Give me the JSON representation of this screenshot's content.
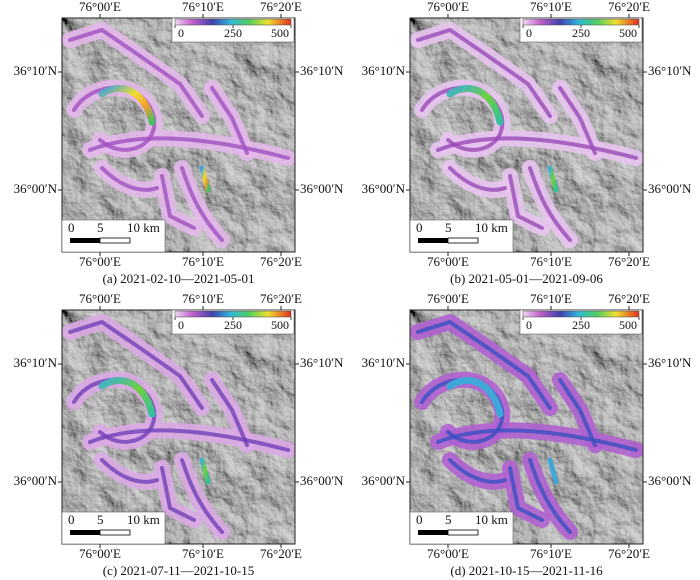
{
  "panels": [
    {
      "caption": "(a) 2021-02-10—2021-05-01",
      "lon_labels": [
        "76°00′E",
        "76°10′E",
        "76°20′E"
      ],
      "lat_labels": [
        "36°10′N",
        "36°00′N"
      ],
      "colorbar_ticks": [
        0,
        250,
        500
      ],
      "scale_labels": [
        "0",
        "5",
        "10 km"
      ]
    },
    {
      "caption": "(b) 2021-05-01—2021-09-06",
      "lon_labels": [
        "76°00′E",
        "76°10′E",
        "76°20′E"
      ],
      "lat_labels": [
        "36°10′N",
        "36°00′N"
      ],
      "colorbar_ticks": [
        0,
        250,
        500
      ],
      "scale_labels": [
        "0",
        "5",
        "10 km"
      ]
    },
    {
      "caption": "(c) 2021-07-11—2021-10-15",
      "lon_labels": [
        "76°00′E",
        "76°10′E",
        "76°20′E"
      ],
      "lat_labels": [
        "36°10′N",
        "36°00′N"
      ],
      "colorbar_ticks": [
        0,
        250,
        500
      ],
      "scale_labels": [
        "0",
        "5",
        "10 km"
      ]
    },
    {
      "caption": "(d) 2021-10-15—2021-11-16",
      "lon_labels": [
        "76°00′E",
        "76°10′E",
        "76°20′E"
      ],
      "lat_labels": [
        "36°10′N",
        "36°00′N"
      ],
      "colorbar_ticks": [
        0,
        250,
        500
      ],
      "scale_labels": [
        "0",
        "5",
        "10 km"
      ]
    }
  ]
}
